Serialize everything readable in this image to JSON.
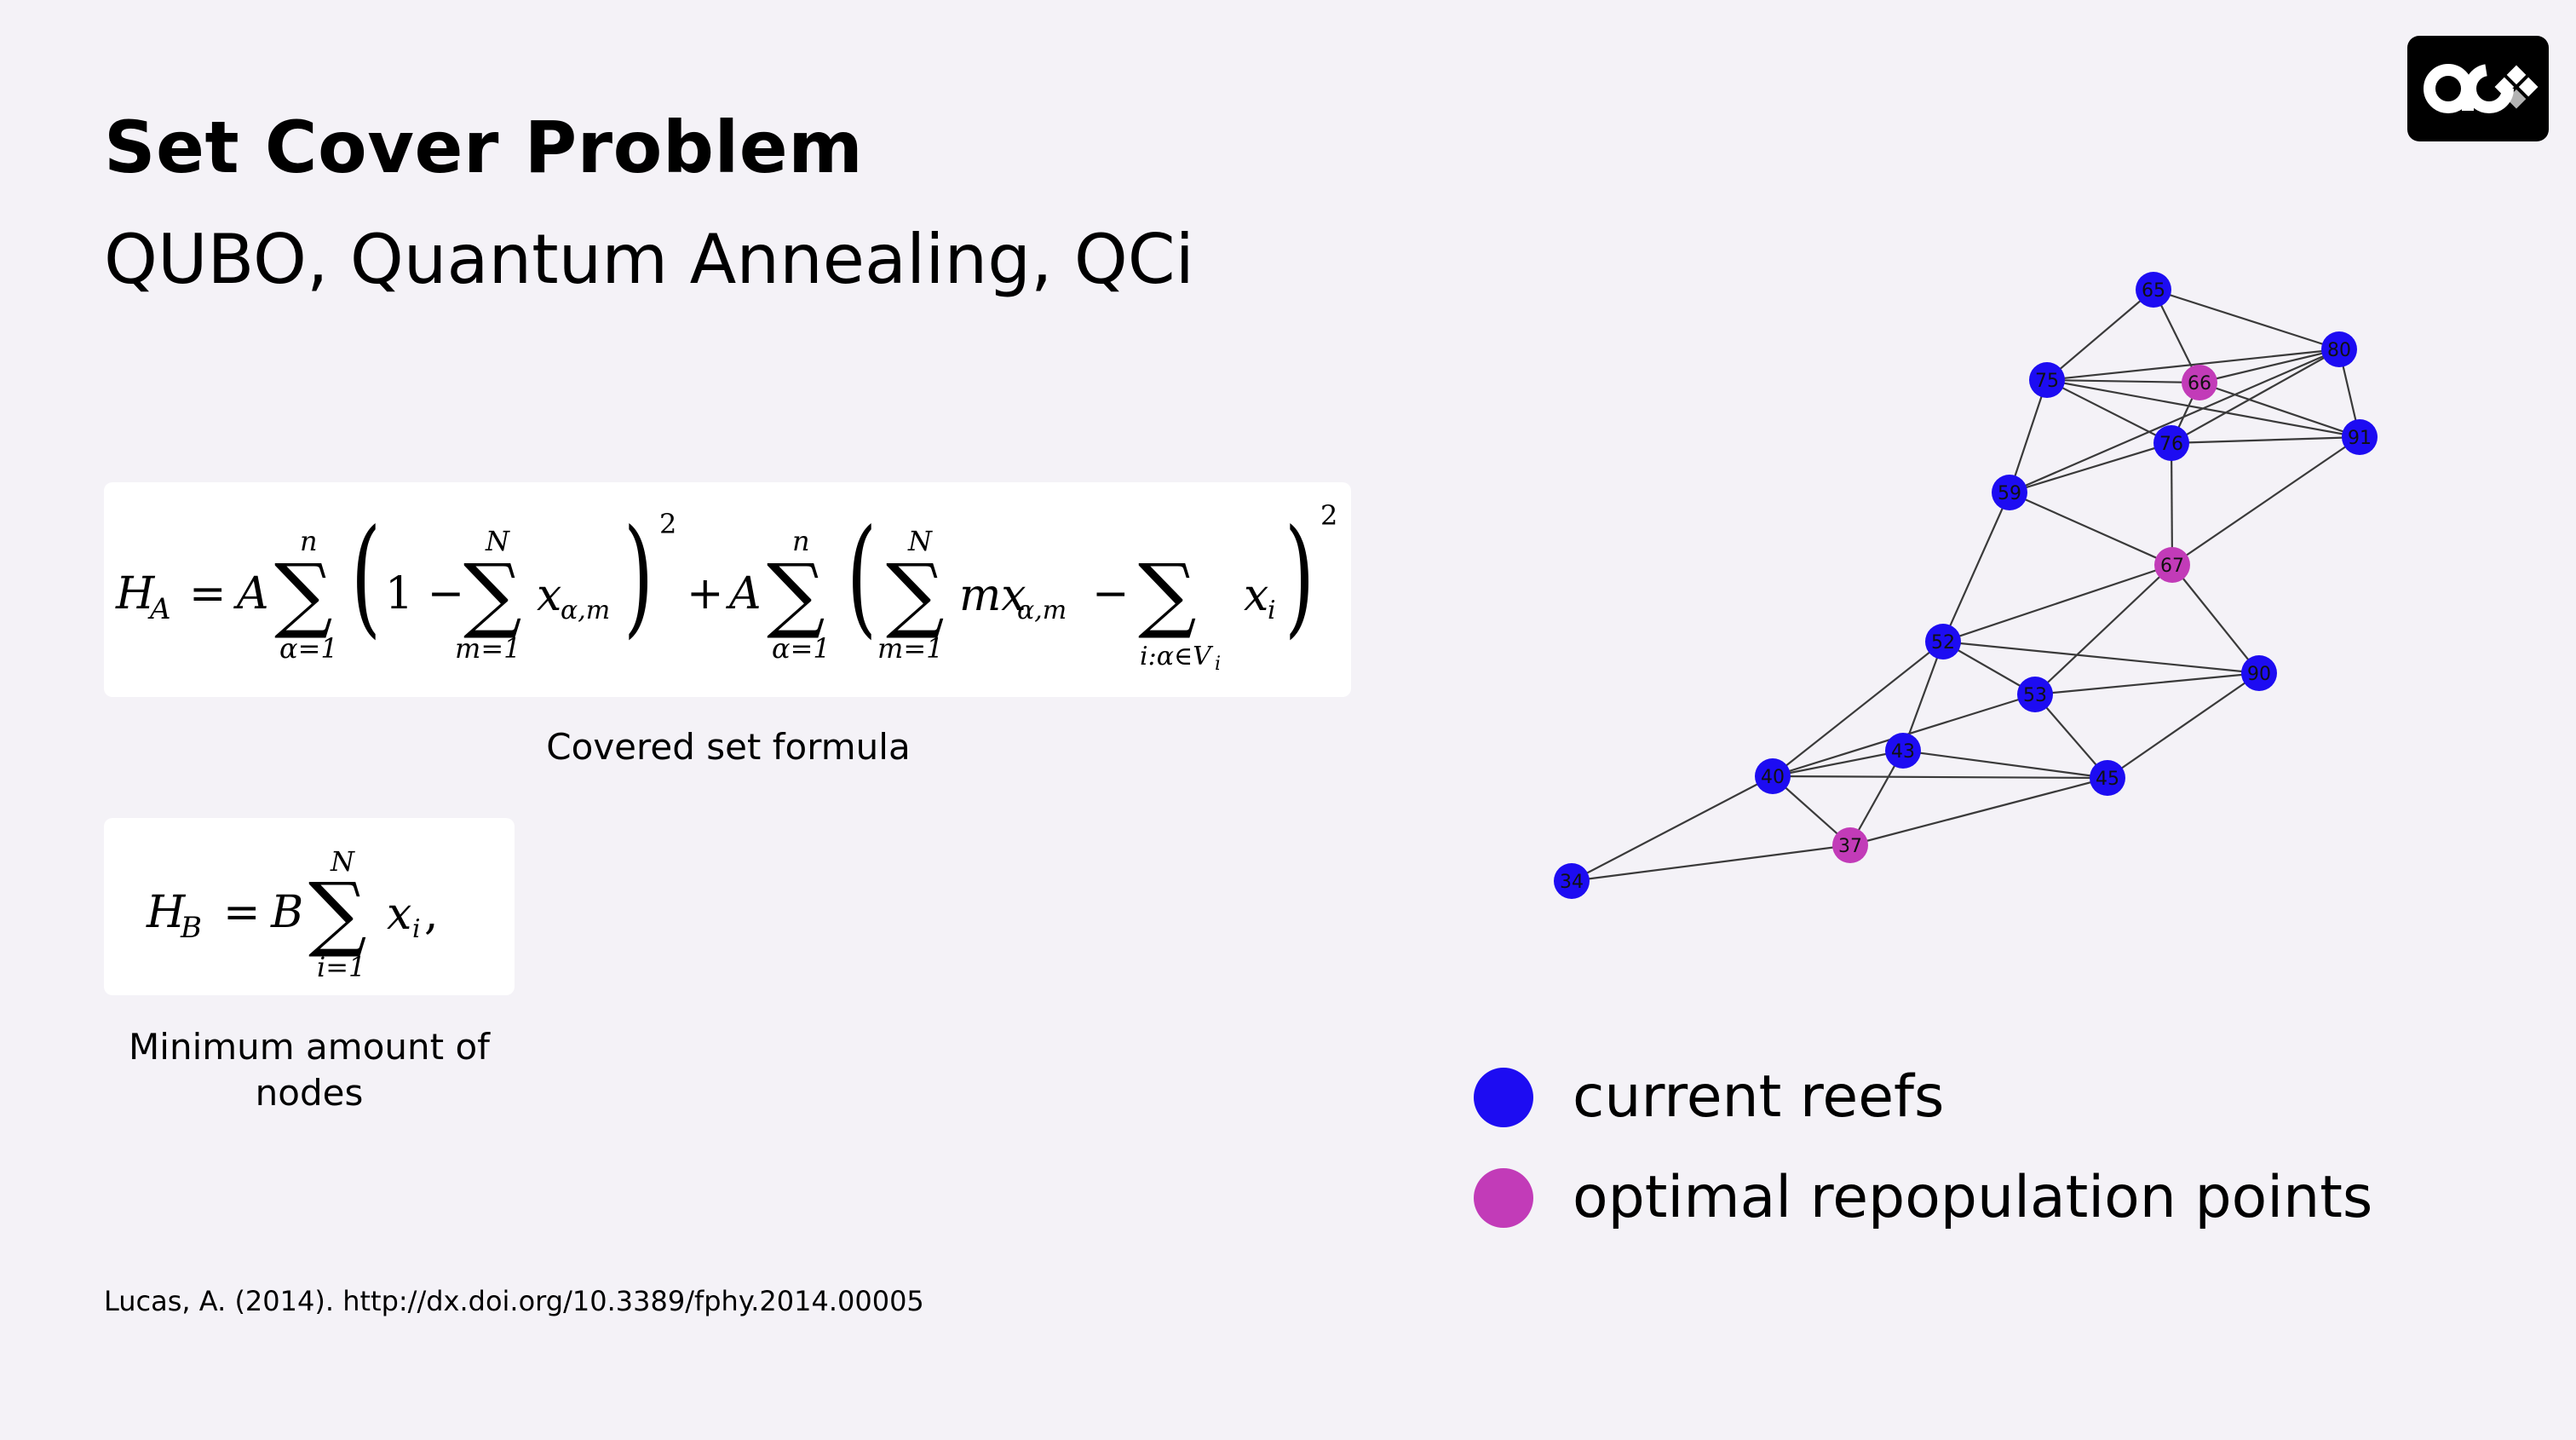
{
  "slide": {
    "title": "Set Cover Problem",
    "subtitle": "QUBO, Quantum Annealing, QCi",
    "logo_icon": "qci-logo-icon"
  },
  "formulas": [
    {
      "id": "HA",
      "caption": "Covered set formula"
    },
    {
      "id": "HB",
      "caption": "Minimum amount of nodes"
    }
  ],
  "graph": {
    "colors": {
      "current_reef": "#1d0cf2",
      "optimal_point": "#c23bb8"
    },
    "nodes": [
      {
        "id": "65",
        "type": "current"
      },
      {
        "id": "80",
        "type": "current"
      },
      {
        "id": "75",
        "type": "current"
      },
      {
        "id": "66",
        "type": "optimal"
      },
      {
        "id": "76",
        "type": "current"
      },
      {
        "id": "91",
        "type": "current"
      },
      {
        "id": "59",
        "type": "current"
      },
      {
        "id": "67",
        "type": "optimal"
      },
      {
        "id": "52",
        "type": "current"
      },
      {
        "id": "90",
        "type": "current"
      },
      {
        "id": "53",
        "type": "current"
      },
      {
        "id": "43",
        "type": "current"
      },
      {
        "id": "40",
        "type": "current"
      },
      {
        "id": "45",
        "type": "current"
      },
      {
        "id": "37",
        "type": "optimal"
      },
      {
        "id": "34",
        "type": "current"
      }
    ],
    "edges": [
      [
        "65",
        "75"
      ],
      [
        "65",
        "66"
      ],
      [
        "65",
        "80"
      ],
      [
        "75",
        "80"
      ],
      [
        "75",
        "66"
      ],
      [
        "75",
        "76"
      ],
      [
        "75",
        "91"
      ],
      [
        "75",
        "59"
      ],
      [
        "66",
        "80"
      ],
      [
        "66",
        "91"
      ],
      [
        "66",
        "76"
      ],
      [
        "80",
        "76"
      ],
      [
        "80",
        "91"
      ],
      [
        "76",
        "59"
      ],
      [
        "76",
        "67"
      ],
      [
        "76",
        "91"
      ],
      [
        "59",
        "67"
      ],
      [
        "59",
        "80"
      ],
      [
        "59",
        "52"
      ],
      [
        "67",
        "91"
      ],
      [
        "67",
        "52"
      ],
      [
        "67",
        "53"
      ],
      [
        "67",
        "90"
      ],
      [
        "52",
        "53"
      ],
      [
        "52",
        "90"
      ],
      [
        "52",
        "40"
      ],
      [
        "52",
        "43"
      ],
      [
        "53",
        "90"
      ],
      [
        "53",
        "45"
      ],
      [
        "53",
        "40"
      ],
      [
        "90",
        "45"
      ],
      [
        "43",
        "40"
      ],
      [
        "43",
        "45"
      ],
      [
        "43",
        "37"
      ],
      [
        "40",
        "45"
      ],
      [
        "40",
        "37"
      ],
      [
        "40",
        "34"
      ],
      [
        "45",
        "37"
      ],
      [
        "37",
        "34"
      ]
    ]
  },
  "legend": [
    {
      "label": "current reefs",
      "color": "#1d0cf2"
    },
    {
      "label": "optimal repopulation points",
      "color": "#c23bb8"
    }
  ],
  "citation": "Lucas, A. (2014). http://dx.doi.org/10.3389/fphy.2014.00005"
}
